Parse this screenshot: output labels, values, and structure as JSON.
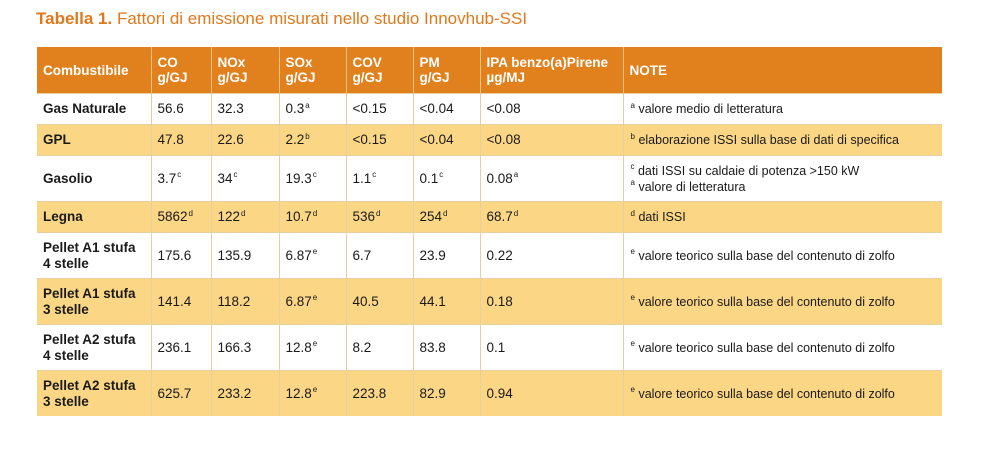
{
  "title": {
    "lead": "Tabella 1.",
    "rest": "Fattori di emissione misurati nello studio Innovhub-SSI"
  },
  "columns": [
    {
      "l1": "Combustibile",
      "l2": ""
    },
    {
      "l1": "CO",
      "l2": "g/GJ"
    },
    {
      "l1": "NOx",
      "l2": "g/GJ"
    },
    {
      "l1": "SOx",
      "l2": "g/GJ"
    },
    {
      "l1": "COV",
      "l2": "g/GJ"
    },
    {
      "l1": "PM",
      "l2": "g/GJ"
    },
    {
      "l1": "IPA benzo(a)Pirene",
      "l2": "µg/MJ"
    },
    {
      "l1": "NOTE",
      "l2": ""
    }
  ],
  "rows": [
    {
      "name1": "Gas Naturale",
      "name2": "",
      "co": "56.6",
      "co_s": "",
      "nox": "32.3",
      "nox_s": "",
      "sox": "0.3",
      "sox_s": "a",
      "cov": "<0.15",
      "cov_s": "",
      "pm": "<0.04",
      "pm_s": "",
      "ipa": "<0.08",
      "ipa_s": "",
      "note1_s": "a",
      "note1": "valore medio di letteratura",
      "note2_s": "",
      "note2": ""
    },
    {
      "name1": "GPL",
      "name2": "",
      "co": "47.8",
      "co_s": "",
      "nox": "22.6",
      "nox_s": "",
      "sox": "2.2",
      "sox_s": "b",
      "cov": "<0.15",
      "cov_s": "",
      "pm": "<0.04",
      "pm_s": "",
      "ipa": "<0.08",
      "ipa_s": "",
      "note1_s": "b",
      "note1": "elaborazione ISSI sulla base di dati di specifica",
      "note2_s": "",
      "note2": ""
    },
    {
      "name1": "Gasolio",
      "name2": "",
      "co": "3.7",
      "co_s": "c",
      "nox": "34",
      "nox_s": "c",
      "sox": "19.3",
      "sox_s": "c",
      "cov": "1.1",
      "cov_s": "c",
      "pm": "0.1",
      "pm_s": "c",
      "ipa": "0.08",
      "ipa_s": "a",
      "note1_s": "c",
      "note1": "dati ISSI su caldaie di potenza >150 kW",
      "note2_s": "a",
      "note2": "valore di letteratura"
    },
    {
      "name1": "Legna",
      "name2": "",
      "co": "5862",
      "co_s": "d",
      "nox": "122",
      "nox_s": "d",
      "sox": "10.7",
      "sox_s": "d",
      "cov": "536",
      "cov_s": "d",
      "pm": "254",
      "pm_s": "d",
      "ipa": "68.7",
      "ipa_s": "d",
      "note1_s": "d",
      "note1": "dati ISSI",
      "note2_s": "",
      "note2": ""
    },
    {
      "name1": "Pellet A1 stufa",
      "name2": "4 stelle",
      "co": "175.6",
      "co_s": "",
      "nox": "135.9",
      "nox_s": "",
      "sox": "6.87",
      "sox_s": "e",
      "cov": "6.7",
      "cov_s": "",
      "pm": "23.9",
      "pm_s": "",
      "ipa": "0.22",
      "ipa_s": "",
      "note1_s": "e",
      "note1": "valore teorico sulla base del contenuto di zolfo",
      "note2_s": "",
      "note2": ""
    },
    {
      "name1": "Pellet A1 stufa",
      "name2": "3 stelle",
      "co": "141.4",
      "co_s": "",
      "nox": "118.2",
      "nox_s": "",
      "sox": "6.87",
      "sox_s": "e",
      "cov": "40.5",
      "cov_s": "",
      "pm": "44.1",
      "pm_s": "",
      "ipa": "0.18",
      "ipa_s": "",
      "note1_s": "e",
      "note1": "valore teorico sulla base del contenuto di zolfo",
      "note2_s": "",
      "note2": ""
    },
    {
      "name1": "Pellet A2 stufa",
      "name2": "4 stelle",
      "co": "236.1",
      "co_s": "",
      "nox": "166.3",
      "nox_s": "",
      "sox": "12.8",
      "sox_s": "e",
      "cov": "8.2",
      "cov_s": "",
      "pm": "83.8",
      "pm_s": "",
      "ipa": "0.1",
      "ipa_s": "",
      "note1_s": "e",
      "note1": "valore teorico sulla base del contenuto di zolfo",
      "note2_s": "",
      "note2": ""
    },
    {
      "name1": "Pellet A2 stufa",
      "name2": "3 stelle",
      "co": "625.7",
      "co_s": "",
      "nox": "233.2",
      "nox_s": "",
      "sox": "12.8",
      "sox_s": "e",
      "cov": "223.8",
      "cov_s": "",
      "pm": "82.9",
      "pm_s": "",
      "ipa": "0.94",
      "ipa_s": "",
      "note1_s": "e",
      "note1": "valore teorico sulla base del contenuto di zolfo",
      "note2_s": "",
      "note2": ""
    }
  ],
  "colors": {
    "header_bg": "#e0811e",
    "title": "#e0791c",
    "row_stripe": "#fbd685",
    "row_plain": "#ffffff"
  }
}
